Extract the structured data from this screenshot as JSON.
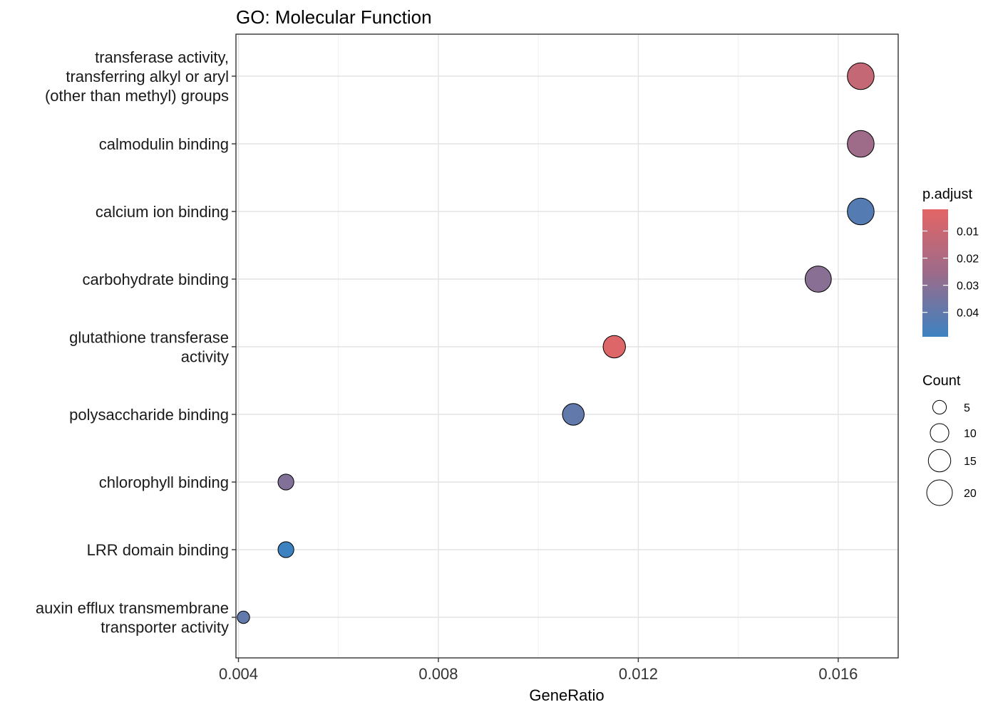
{
  "chart_data": {
    "type": "scatter",
    "title": "GO: Molecular Function",
    "xlabel": "GeneRatio",
    "ylabel": "",
    "xlim": [
      0.00395,
      0.0172
    ],
    "xticks": [
      "0.004",
      "0.008",
      "0.012",
      "0.016"
    ],
    "xtick_values": [
      0.004,
      0.008,
      0.012,
      0.016
    ],
    "grid": true,
    "legend_position": "right",
    "categories": [
      [
        "transferase activity,",
        "transferring alkyl or aryl",
        "(other than methyl) groups"
      ],
      [
        "calmodulin binding"
      ],
      [
        "calcium ion binding"
      ],
      [
        "carbohydrate binding"
      ],
      [
        "glutathione transferase",
        "activity"
      ],
      [
        "polysaccharide binding"
      ],
      [
        "chlorophyll binding"
      ],
      [
        "LRR domain binding"
      ],
      [
        "auxin efflux transmembrane",
        "transporter activity"
      ]
    ],
    "points": [
      {
        "x": 0.01645,
        "count": 22,
        "p_adjust": 0.012
      },
      {
        "x": 0.01645,
        "count": 22,
        "p_adjust": 0.025
      },
      {
        "x": 0.01645,
        "count": 22,
        "p_adjust": 0.043
      },
      {
        "x": 0.0156,
        "count": 21,
        "p_adjust": 0.03
      },
      {
        "x": 0.01152,
        "count": 15,
        "p_adjust": 0.004
      },
      {
        "x": 0.0107,
        "count": 14,
        "p_adjust": 0.04
      },
      {
        "x": 0.00495,
        "count": 7,
        "p_adjust": 0.032
      },
      {
        "x": 0.00495,
        "count": 7,
        "p_adjust": 0.049
      },
      {
        "x": 0.0041,
        "count": 4,
        "p_adjust": 0.04
      }
    ],
    "color_legend": {
      "title": "p.adjust",
      "range": [
        0.002,
        0.049
      ],
      "ticks": [
        "0.01",
        "0.02",
        "0.03",
        "0.04"
      ],
      "tick_values": [
        0.01,
        0.02,
        0.03,
        0.04
      ],
      "low_color": "#e36565",
      "high_color": "#3c82c0"
    },
    "size_legend": {
      "title": "Count",
      "labels": [
        "5",
        "10",
        "15",
        "20"
      ],
      "values": [
        5,
        10,
        15,
        20
      ]
    }
  }
}
